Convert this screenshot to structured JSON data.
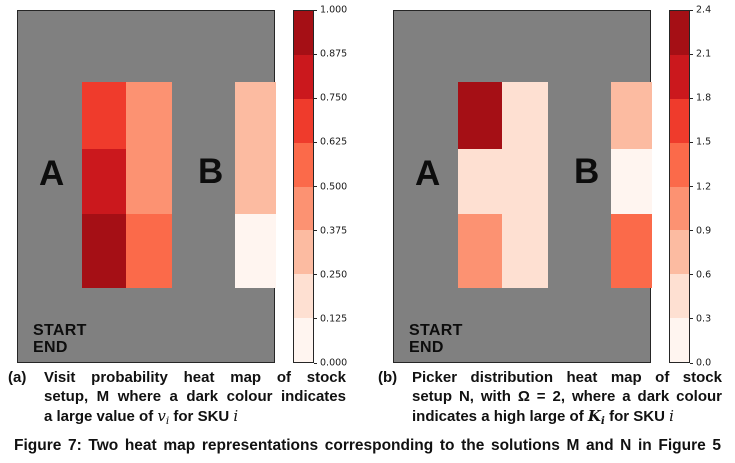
{
  "figure_caption": "Figure 7: Two heat map representations corresponding to the solutions M and N in Figure 5",
  "colors": {
    "page_background": "#ffffff",
    "plot_background": "#808080",
    "text": "#111111",
    "band_colors_top_to_bottom": [
      "#a50f15",
      "#cb181d",
      "#ef3b2c",
      "#fb6a4a",
      "#fc9272",
      "#fcbba1",
      "#fee0d2",
      "#fff5f0"
    ]
  },
  "panels": [
    {
      "id": "a",
      "prefix": "(a)",
      "area_label_a": "A",
      "area_label_b": "B",
      "start_label": "START",
      "end_label": "END",
      "caption_lines": [
        {
          "justify": true,
          "segments": [
            {
              "t": "Visit probability heat map of stock"
            }
          ]
        },
        {
          "justify": true,
          "segments": [
            {
              "t": "setup, M where a dark colour indicates"
            }
          ]
        },
        {
          "justify": false,
          "segments": [
            {
              "t": "a large value of "
            },
            {
              "t": "v",
              "k": "mi"
            },
            {
              "t": "i",
              "k": "msub"
            },
            {
              "t": " for SKU ",
              "k": null
            },
            {
              "t": "i",
              "k": "mi"
            }
          ]
        }
      ]
    },
    {
      "id": "b",
      "prefix": "(b)",
      "area_label_a": "A",
      "area_label_b": "B",
      "start_label": "START",
      "end_label": "END",
      "caption_lines": [
        {
          "justify": true,
          "segments": [
            {
              "t": "Picker distribution heat map of stock"
            }
          ]
        },
        {
          "justify": true,
          "segments": [
            {
              "t": "setup N, with Ω = 2, where a dark colour"
            }
          ]
        },
        {
          "justify": false,
          "segments": [
            {
              "t": "indicates a high large of "
            },
            {
              "t": "K",
              "k": "mib"
            },
            {
              "t": "i",
              "k": "msubb"
            },
            {
              "t": " for SKU ",
              "k": null
            },
            {
              "t": "i",
              "k": "mi"
            }
          ]
        }
      ]
    }
  ],
  "chart_data": [
    {
      "type": "heatmap",
      "panel": "a",
      "title": "Visit probability heat map of stock setup M (dark colour = large value of v_i for SKU i)",
      "value_range": [
        0.0,
        1.0
      ],
      "colorbar_tick_labels": [
        "1.000",
        "0.875",
        "0.750",
        "0.625",
        "0.500",
        "0.375",
        "0.250",
        "0.125",
        "0.000"
      ],
      "legend_position": "right",
      "cells": [
        {
          "c": 0,
          "r": 0,
          "rs": 1,
          "color": "#ef3b2c",
          "value": 0.69
        },
        {
          "c": 0,
          "r": 1,
          "rs": 1,
          "color": "#cb181d",
          "value": 0.81
        },
        {
          "c": 0,
          "r": 2,
          "rs": 1,
          "color": "#a50f15",
          "value": 0.94
        },
        {
          "c": 1,
          "r": 0,
          "rs": 2,
          "color": "#fc9272",
          "value": 0.44
        },
        {
          "c": 1,
          "r": 2,
          "rs": 1,
          "color": "#fb6a4a",
          "value": 0.56
        },
        {
          "c": 2,
          "r": 0,
          "rs": 2,
          "color": "#fcbba1",
          "value": 0.31
        },
        {
          "c": 2,
          "r": 2,
          "rs": 1,
          "color": "#fff5f0",
          "value": 0.06
        }
      ]
    },
    {
      "type": "heatmap",
      "panel": "b",
      "title": "Picker distribution heat map of stock setup N, with Ω = 2 (dark colour = high value of K_i for SKU i)",
      "value_range": [
        0.0,
        2.4
      ],
      "colorbar_tick_labels": [
        "2.4",
        "2.1",
        "1.8",
        "1.5",
        "1.2",
        "0.9",
        "0.6",
        "0.3",
        "0.0"
      ],
      "legend_position": "right",
      "cells": [
        {
          "c": 0,
          "r": 0,
          "rs": 1,
          "color": "#a50f15",
          "value": 2.25
        },
        {
          "c": 0,
          "r": 1,
          "rs": 1,
          "color": "#fee0d2",
          "value": 0.45
        },
        {
          "c": 0,
          "r": 2,
          "rs": 1,
          "color": "#fc9272",
          "value": 1.05
        },
        {
          "c": 1,
          "r": 0,
          "rs": 3,
          "color": "#fee0d2",
          "value": 0.45
        },
        {
          "c": 2,
          "r": 0,
          "rs": 1,
          "color": "#fcbba1",
          "value": 0.75
        },
        {
          "c": 2,
          "r": 1,
          "rs": 1,
          "color": "#fff5f0",
          "value": 0.15
        },
        {
          "c": 2,
          "r": 2,
          "rs": 1,
          "color": "#fb6a4a",
          "value": 1.35
        }
      ]
    }
  ]
}
